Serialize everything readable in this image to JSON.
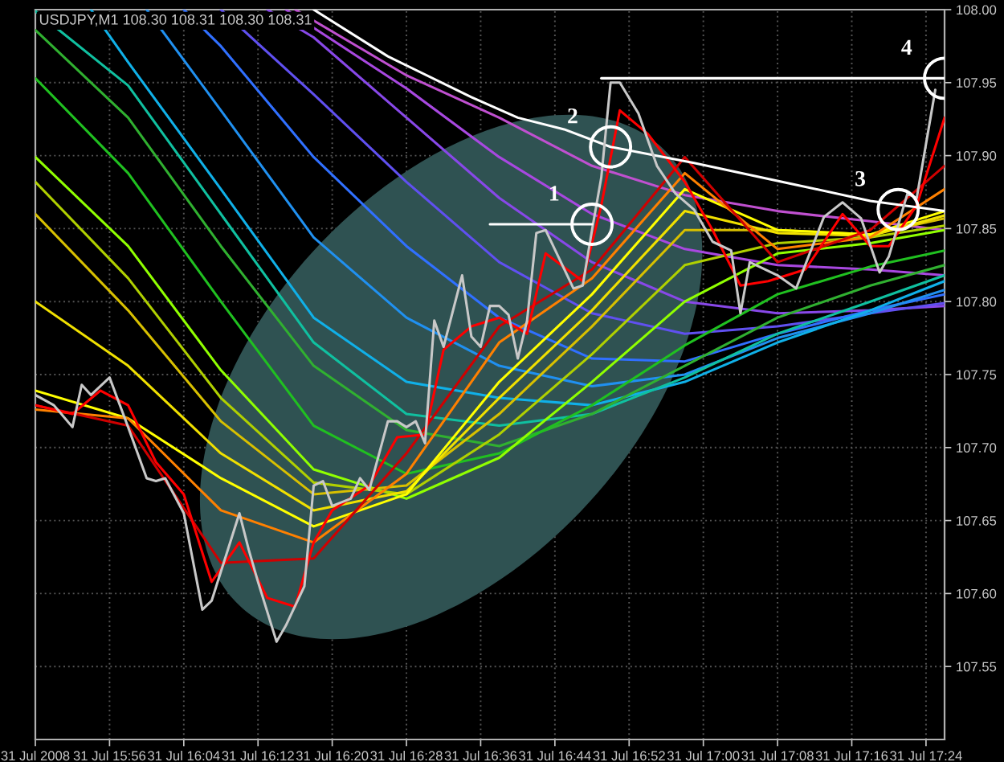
{
  "chart_data": {
    "type": "line",
    "title": "USDJPY,M1 108.30 108.31 108.30 108.31",
    "xlim": [
      "2008-07-31T15:48",
      "2008-07-31T17:26"
    ],
    "xticks": [
      {
        "value": "2008-07-31T15:48",
        "label": "31 Jul 2008"
      },
      {
        "value": "2008-07-31T15:56",
        "label": "31 Jul 15:56"
      },
      {
        "value": "2008-07-31T16:04",
        "label": "31 Jul 16:04"
      },
      {
        "value": "2008-07-31T16:12",
        "label": "31 Jul 16:12"
      },
      {
        "value": "2008-07-31T16:20",
        "label": "31 Jul 16:20"
      },
      {
        "value": "2008-07-31T16:28",
        "label": "31 Jul 16:28"
      },
      {
        "value": "2008-07-31T16:36",
        "label": "31 Jul 16:36"
      },
      {
        "value": "2008-07-31T16:44",
        "label": "31 Jul 16:44"
      },
      {
        "value": "2008-07-31T16:52",
        "label": "31 Jul 16:52"
      },
      {
        "value": "2008-07-31T17:00",
        "label": "31 Jul 17:00"
      },
      {
        "value": "2008-07-31T17:08",
        "label": "31 Jul 17:08"
      },
      {
        "value": "2008-07-31T17:16",
        "label": "31 Jul 17:16"
      },
      {
        "value": "2008-07-31T17:24",
        "label": "31 Jul 17:24"
      }
    ],
    "ylim": [
      107.5,
      108.0
    ],
    "yticks": [
      107.55,
      {
        "value": 107.6,
        "label": "107.60"
      },
      107.65,
      {
        "value": 107.7,
        "label": "107.70"
      },
      107.75,
      {
        "value": 107.8,
        "label": "107.80"
      },
      107.85,
      {
        "value": 107.9,
        "label": "107.90"
      },
      107.95,
      {
        "value": 108.0,
        "label": "108.00"
      }
    ],
    "grid": true,
    "x": [
      "2008-07-31T15:48",
      "2008-07-31T15:58",
      "2008-07-31T16:08",
      "2008-07-31T16:18",
      "2008-07-31T16:28",
      "2008-07-31T16:38",
      "2008-07-31T16:48",
      "2008-07-31T16:58",
      "2008-07-31T17:08",
      "2008-07-31T17:18",
      "2008-07-31T17:26"
    ],
    "series": [
      {
        "color": "#c050d0",
        "x": [
          "2008-07-31T16:16",
          "2008-07-31T16:28",
          "2008-07-31T16:38",
          "2008-07-31T16:48",
          "2008-07-31T16:58",
          "2008-07-31T17:08",
          "2008-07-31T17:18",
          "2008-07-31T17:26"
        ],
        "values": [
          108.0,
          107.955,
          107.926,
          107.893,
          107.873,
          107.862,
          107.855,
          107.849
        ]
      },
      {
        "color": "#a848e0",
        "x": [
          "2008-07-31T16:15",
          "2008-07-31T16:28",
          "2008-07-31T16:38",
          "2008-07-31T16:48",
          "2008-07-31T16:58",
          "2008-07-31T17:08",
          "2008-07-31T17:18",
          "2008-07-31T17:26"
        ],
        "values": [
          108.0,
          107.946,
          107.899,
          107.86,
          107.836,
          107.825,
          107.822,
          107.818
        ]
      },
      {
        "color": "#8848e8",
        "x": [
          "2008-07-31T16:13",
          "2008-07-31T16:18",
          "2008-07-31T16:28",
          "2008-07-31T16:38",
          "2008-07-31T16:48",
          "2008-07-31T16:58",
          "2008-07-31T17:08",
          "2008-07-31T17:18",
          "2008-07-31T17:26"
        ],
        "values": [
          108.0,
          107.981,
          107.926,
          107.871,
          107.827,
          107.8,
          107.792,
          107.794,
          107.797
        ]
      },
      {
        "color": "#6050f0",
        "x": [
          "2008-07-31T16:08",
          "2008-07-31T16:18",
          "2008-07-31T16:28",
          "2008-07-31T16:38",
          "2008-07-31T16:48",
          "2008-07-31T16:58",
          "2008-07-31T17:08",
          "2008-07-31T17:18",
          "2008-07-31T17:26"
        ],
        "values": [
          108.0,
          107.942,
          107.882,
          107.827,
          107.792,
          107.778,
          107.783,
          107.792,
          107.799
        ]
      },
      {
        "color": "#3070ff",
        "x": [
          "2008-07-31T16:04",
          "2008-07-31T16:08",
          "2008-07-31T16:18",
          "2008-07-31T16:28",
          "2008-07-31T16:38",
          "2008-07-31T16:48",
          "2008-07-31T16:58",
          "2008-07-31T17:08",
          "2008-07-31T17:18",
          "2008-07-31T17:26"
        ],
        "values": [
          108.0,
          107.975,
          107.899,
          107.838,
          107.789,
          107.761,
          107.759,
          107.778,
          107.794,
          107.805
        ]
      },
      {
        "color": "#2090f0",
        "x": [
          "2008-07-31T16:00",
          "2008-07-31T16:08",
          "2008-07-31T16:18",
          "2008-07-31T16:28",
          "2008-07-31T16:38",
          "2008-07-31T16:48",
          "2008-07-31T16:58",
          "2008-07-31T17:08",
          "2008-07-31T17:18",
          "2008-07-31T17:26"
        ],
        "values": [
          108.0,
          107.931,
          107.844,
          107.789,
          107.756,
          107.742,
          107.75,
          107.775,
          107.792,
          107.808
        ]
      },
      {
        "color": "#10b0e8",
        "x": [
          "2008-07-31T15:54",
          "2008-07-31T15:58",
          "2008-07-31T16:08",
          "2008-07-31T16:18",
          "2008-07-31T16:28",
          "2008-07-31T16:38",
          "2008-07-31T16:48",
          "2008-07-31T16:58",
          "2008-07-31T17:08",
          "2008-07-31T17:18",
          "2008-07-31T17:26"
        ],
        "values": [
          108.0,
          107.964,
          107.877,
          107.789,
          107.745,
          107.734,
          107.729,
          107.745,
          107.772,
          107.794,
          107.814
        ]
      },
      {
        "color": "#10c0a0",
        "values": [
          107.999,
          107.948,
          107.86,
          107.772,
          107.723,
          107.715,
          107.723,
          107.748,
          107.778,
          107.8,
          107.818
        ]
      },
      {
        "color": "#30b030",
        "values": [
          107.986,
          107.926,
          107.838,
          107.756,
          107.712,
          107.701,
          107.723,
          107.756,
          107.789,
          107.811,
          107.825
        ]
      },
      {
        "color": "#20c020",
        "values": [
          107.953,
          107.888,
          107.8,
          107.715,
          107.682,
          107.696,
          107.729,
          107.77,
          107.805,
          107.824,
          107.835
        ]
      },
      {
        "color": "#90ff00",
        "values": [
          107.899,
          107.838,
          107.753,
          107.685,
          107.665,
          107.693,
          107.745,
          107.8,
          107.833,
          107.84,
          107.849
        ]
      },
      {
        "color": "#b0d000",
        "values": [
          107.882,
          107.816,
          107.734,
          107.676,
          107.668,
          107.709,
          107.764,
          107.825,
          107.84,
          107.844,
          107.852
        ]
      },
      {
        "color": "#d8c000",
        "values": [
          107.86,
          107.794,
          107.718,
          107.668,
          107.674,
          107.723,
          107.783,
          107.849,
          107.849,
          107.846,
          107.857
        ]
      },
      {
        "color": "#f0e000",
        "values": [
          107.8,
          107.756,
          107.696,
          107.657,
          107.67,
          107.734,
          107.794,
          107.862,
          107.847,
          107.845,
          107.859
        ]
      },
      {
        "color": "#ffff00",
        "values": [
          107.739,
          107.72,
          107.679,
          107.646,
          107.668,
          107.745,
          107.805,
          107.877,
          107.849,
          107.846,
          107.862
        ]
      },
      {
        "color": "#ff8000",
        "values": [
          107.726,
          107.72,
          107.657,
          107.635,
          107.682,
          107.772,
          107.816,
          107.888,
          107.836,
          107.844,
          107.877
        ]
      },
      {
        "color": "#d00000",
        "values": [
          107.729,
          107.715,
          107.621,
          107.624,
          107.696,
          107.783,
          107.822,
          107.899,
          107.827,
          107.849,
          107.893
        ]
      },
      {
        "color": "#ff0000",
        "x": [
          "2008-07-31T15:48",
          "2008-07-31T15:52",
          "2008-07-31T15:55",
          "2008-07-31T15:58",
          "2008-07-31T16:01",
          "2008-07-31T16:04",
          "2008-07-31T16:07",
          "2008-07-31T16:10",
          "2008-07-31T16:13",
          "2008-07-31T16:16",
          "2008-07-31T16:18",
          "2008-07-31T16:20",
          "2008-07-31T16:24",
          "2008-07-31T16:27",
          "2008-07-31T16:30",
          "2008-07-31T16:32",
          "2008-07-31T16:35",
          "2008-07-31T16:38",
          "2008-07-31T16:41",
          "2008-07-31T16:43",
          "2008-07-31T16:47",
          "2008-07-31T16:49",
          "2008-07-31T16:51",
          "2008-07-31T16:54",
          "2008-07-31T16:58",
          "2008-07-31T17:01",
          "2008-07-31T17:04",
          "2008-07-31T17:07",
          "2008-07-31T17:11",
          "2008-07-31T17:15",
          "2008-07-31T17:18",
          "2008-07-31T17:20",
          "2008-07-31T17:23",
          "2008-07-31T17:26"
        ],
        "values": [
          107.729,
          107.723,
          107.739,
          107.729,
          107.69,
          107.668,
          107.608,
          107.635,
          107.597,
          107.591,
          107.635,
          107.657,
          107.674,
          107.707,
          107.709,
          107.767,
          107.783,
          107.789,
          107.778,
          107.833,
          107.814,
          107.866,
          107.931,
          107.915,
          107.882,
          107.849,
          107.811,
          107.814,
          107.822,
          107.86,
          107.838,
          107.838,
          107.866,
          107.926
        ]
      },
      {
        "color": "#ffffff",
        "x": [
          "2008-07-31T16:18",
          "2008-07-31T16:26",
          "2008-07-31T16:35",
          "2008-07-31T16:40",
          "2008-07-31T16:45",
          "2008-07-31T16:50",
          "2008-07-31T16:59",
          "2008-07-31T17:10",
          "2008-07-31T17:18",
          "2008-07-31T17:26"
        ],
        "values": [
          108.0,
          107.968,
          107.94,
          107.926,
          107.918,
          107.906,
          107.895,
          107.88,
          107.869,
          107.862
        ]
      },
      {
        "color": "#c8c8c8",
        "x": [
          "2008-07-31T15:48",
          "2008-07-31T15:50",
          "2008-07-31T15:52",
          "2008-07-31T15:53",
          "2008-07-31T15:54",
          "2008-07-31T15:56",
          "2008-07-31T15:58",
          "2008-07-31T16:00",
          "2008-07-31T16:01",
          "2008-07-31T16:02",
          "2008-07-31T16:04",
          "2008-07-31T16:06",
          "2008-07-31T16:07",
          "2008-07-31T16:10",
          "2008-07-31T16:11",
          "2008-07-31T16:12",
          "2008-07-31T16:14",
          "2008-07-31T16:15",
          "2008-07-31T16:17",
          "2008-07-31T16:18",
          "2008-07-31T16:19",
          "2008-07-31T16:20",
          "2008-07-31T16:22",
          "2008-07-31T16:23",
          "2008-07-31T16:24",
          "2008-07-31T16:26",
          "2008-07-31T16:27",
          "2008-07-31T16:28",
          "2008-07-31T16:29",
          "2008-07-31T16:30",
          "2008-07-31T16:31",
          "2008-07-31T16:32",
          "2008-07-31T16:34",
          "2008-07-31T16:35",
          "2008-07-31T16:36",
          "2008-07-31T16:37",
          "2008-07-31T16:38",
          "2008-07-31T16:39",
          "2008-07-31T16:40",
          "2008-07-31T16:41",
          "2008-07-31T16:42",
          "2008-07-31T16:43",
          "2008-07-31T16:46",
          "2008-07-31T16:47",
          "2008-07-31T16:48",
          "2008-07-31T16:49",
          "2008-07-31T16:50",
          "2008-07-31T16:51",
          "2008-07-31T16:53",
          "2008-07-31T16:55",
          "2008-07-31T16:57",
          "2008-07-31T16:59",
          "2008-07-31T17:01",
          "2008-07-31T17:03",
          "2008-07-31T17:04",
          "2008-07-31T17:05",
          "2008-07-31T17:08",
          "2008-07-31T17:10",
          "2008-07-31T17:13",
          "2008-07-31T17:15",
          "2008-07-31T17:17",
          "2008-07-31T17:19",
          "2008-07-31T17:20",
          "2008-07-31T17:22",
          "2008-07-31T17:23",
          "2008-07-31T17:25"
        ],
        "values": [
          107.736,
          107.729,
          107.714,
          107.743,
          107.736,
          107.748,
          107.714,
          107.679,
          107.677,
          107.679,
          107.655,
          107.589,
          107.595,
          107.655,
          107.63,
          107.608,
          107.567,
          107.578,
          107.605,
          107.674,
          107.677,
          107.66,
          107.665,
          107.679,
          107.671,
          107.718,
          107.718,
          107.714,
          107.718,
          107.703,
          107.787,
          107.769,
          107.818,
          107.776,
          107.769,
          107.797,
          107.797,
          107.791,
          107.761,
          107.787,
          107.847,
          107.849,
          107.809,
          107.811,
          107.849,
          107.885,
          107.95,
          107.95,
          107.929,
          107.893,
          107.874,
          107.863,
          107.841,
          107.835,
          107.792,
          107.827,
          107.818,
          107.809,
          107.858,
          107.868,
          107.857,
          107.82,
          107.831,
          107.874,
          107.871,
          107.945
        ]
      },
      {
        "color": "#ffffff",
        "x": [
          "2008-07-31T16:37",
          "2008-07-31T16:48"
        ],
        "values": [
          107.853,
          107.853
        ]
      },
      {
        "color": "#ffffff",
        "x": [
          "2008-07-31T16:49",
          "2008-07-31T17:26"
        ],
        "values": [
          107.953,
          107.953
        ]
      }
    ],
    "annotations": [
      {
        "text": "1",
        "x": "2008-07-31T16:48",
        "y": 107.853
      },
      {
        "text": "2",
        "x": "2008-07-31T16:50",
        "y": 107.906
      },
      {
        "text": "3",
        "x": "2008-07-31T17:21",
        "y": 107.863
      },
      {
        "text": "4",
        "x": "2008-07-31T17:26",
        "y": 107.953
      }
    ]
  }
}
